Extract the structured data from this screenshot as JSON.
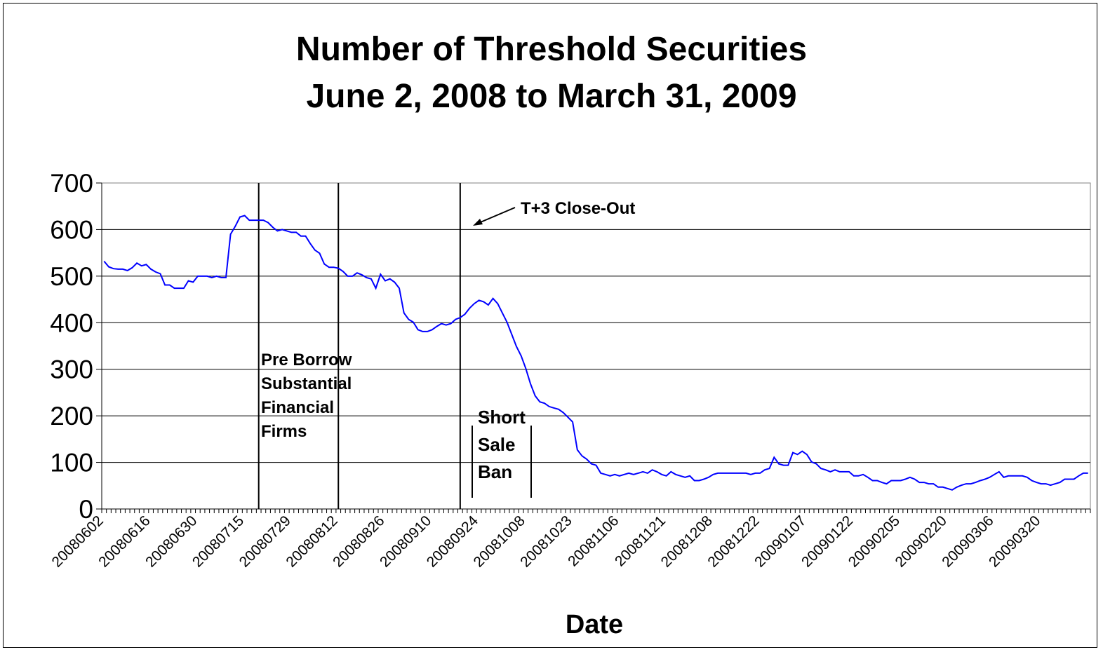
{
  "chart_data": {
    "type": "line",
    "title_lines": [
      "Number of Threshold Securities",
      "June 2, 2008 to March 31, 2009"
    ],
    "xlabel": "Date",
    "ylabel": "",
    "ylim": [
      0,
      700
    ],
    "y_ticks": [
      "0",
      "100",
      "200",
      "300",
      "400",
      "500",
      "600",
      "700"
    ],
    "x_tick_labels": [
      "20080602",
      "20080616",
      "20080630",
      "20080715",
      "20080729",
      "20080812",
      "20080826",
      "20080910",
      "20080924",
      "20081008",
      "20081023",
      "20081106",
      "20081121",
      "20081208",
      "20081222",
      "20090107",
      "20090122",
      "20090205",
      "20090220",
      "20090306",
      "20090320"
    ],
    "grid": "horizontal",
    "line_color": "#0000ff",
    "series": [
      {
        "values": [
          532,
          520,
          516,
          515,
          515,
          512,
          518,
          528,
          522,
          525,
          515,
          509,
          505,
          481,
          481,
          474,
          474,
          474,
          490,
          487,
          500,
          500,
          500,
          497,
          500,
          497,
          497,
          590,
          607,
          627,
          630,
          620,
          620,
          620,
          620,
          615,
          605,
          597,
          600,
          597,
          594,
          594,
          586,
          586,
          570,
          556,
          549,
          526,
          519,
          519,
          517,
          510,
          500,
          500,
          507,
          503,
          497,
          494,
          474,
          504,
          490,
          494,
          487,
          474,
          421,
          407,
          401,
          385,
          381,
          381,
          385,
          392,
          398,
          395,
          398,
          407,
          411,
          418,
          431,
          441,
          448,
          445,
          438,
          452,
          441,
          421,
          401,
          375,
          349,
          329,
          302,
          269,
          243,
          230,
          227,
          220,
          217,
          214,
          207,
          197,
          187,
          127,
          114,
          107,
          97,
          94,
          77,
          74,
          71,
          74,
          71,
          74,
          77,
          74,
          77,
          80,
          77,
          84,
          80,
          74,
          71,
          80,
          74,
          71,
          68,
          71,
          61,
          61,
          64,
          68,
          74,
          77,
          77,
          77,
          77,
          77,
          77,
          77,
          74,
          77,
          77,
          84,
          87,
          111,
          97,
          94,
          94,
          121,
          117,
          124,
          117,
          101,
          97,
          87,
          84,
          80,
          84,
          80,
          80,
          80,
          71,
          71,
          74,
          68,
          61,
          61,
          57,
          54,
          61,
          61,
          61,
          64,
          68,
          64,
          57,
          57,
          54,
          54,
          47,
          47,
          44,
          41,
          47,
          51,
          54,
          54,
          57,
          61,
          64,
          68,
          74,
          80,
          68,
          71,
          71,
          71,
          71,
          68,
          61,
          57,
          54,
          54,
          51,
          54,
          57,
          64,
          64,
          64,
          71,
          77,
          77
        ]
      }
    ],
    "annotations": {
      "pre_borrow": [
        "Pre Borrow",
        "Substantial",
        "Financial",
        "Firms"
      ],
      "t3_closeout": "T+3 Close-Out",
      "short_sale_ban": [
        "Short",
        "Sale",
        "Ban"
      ]
    },
    "event_markers_index": [
      33,
      50,
      76
    ]
  }
}
